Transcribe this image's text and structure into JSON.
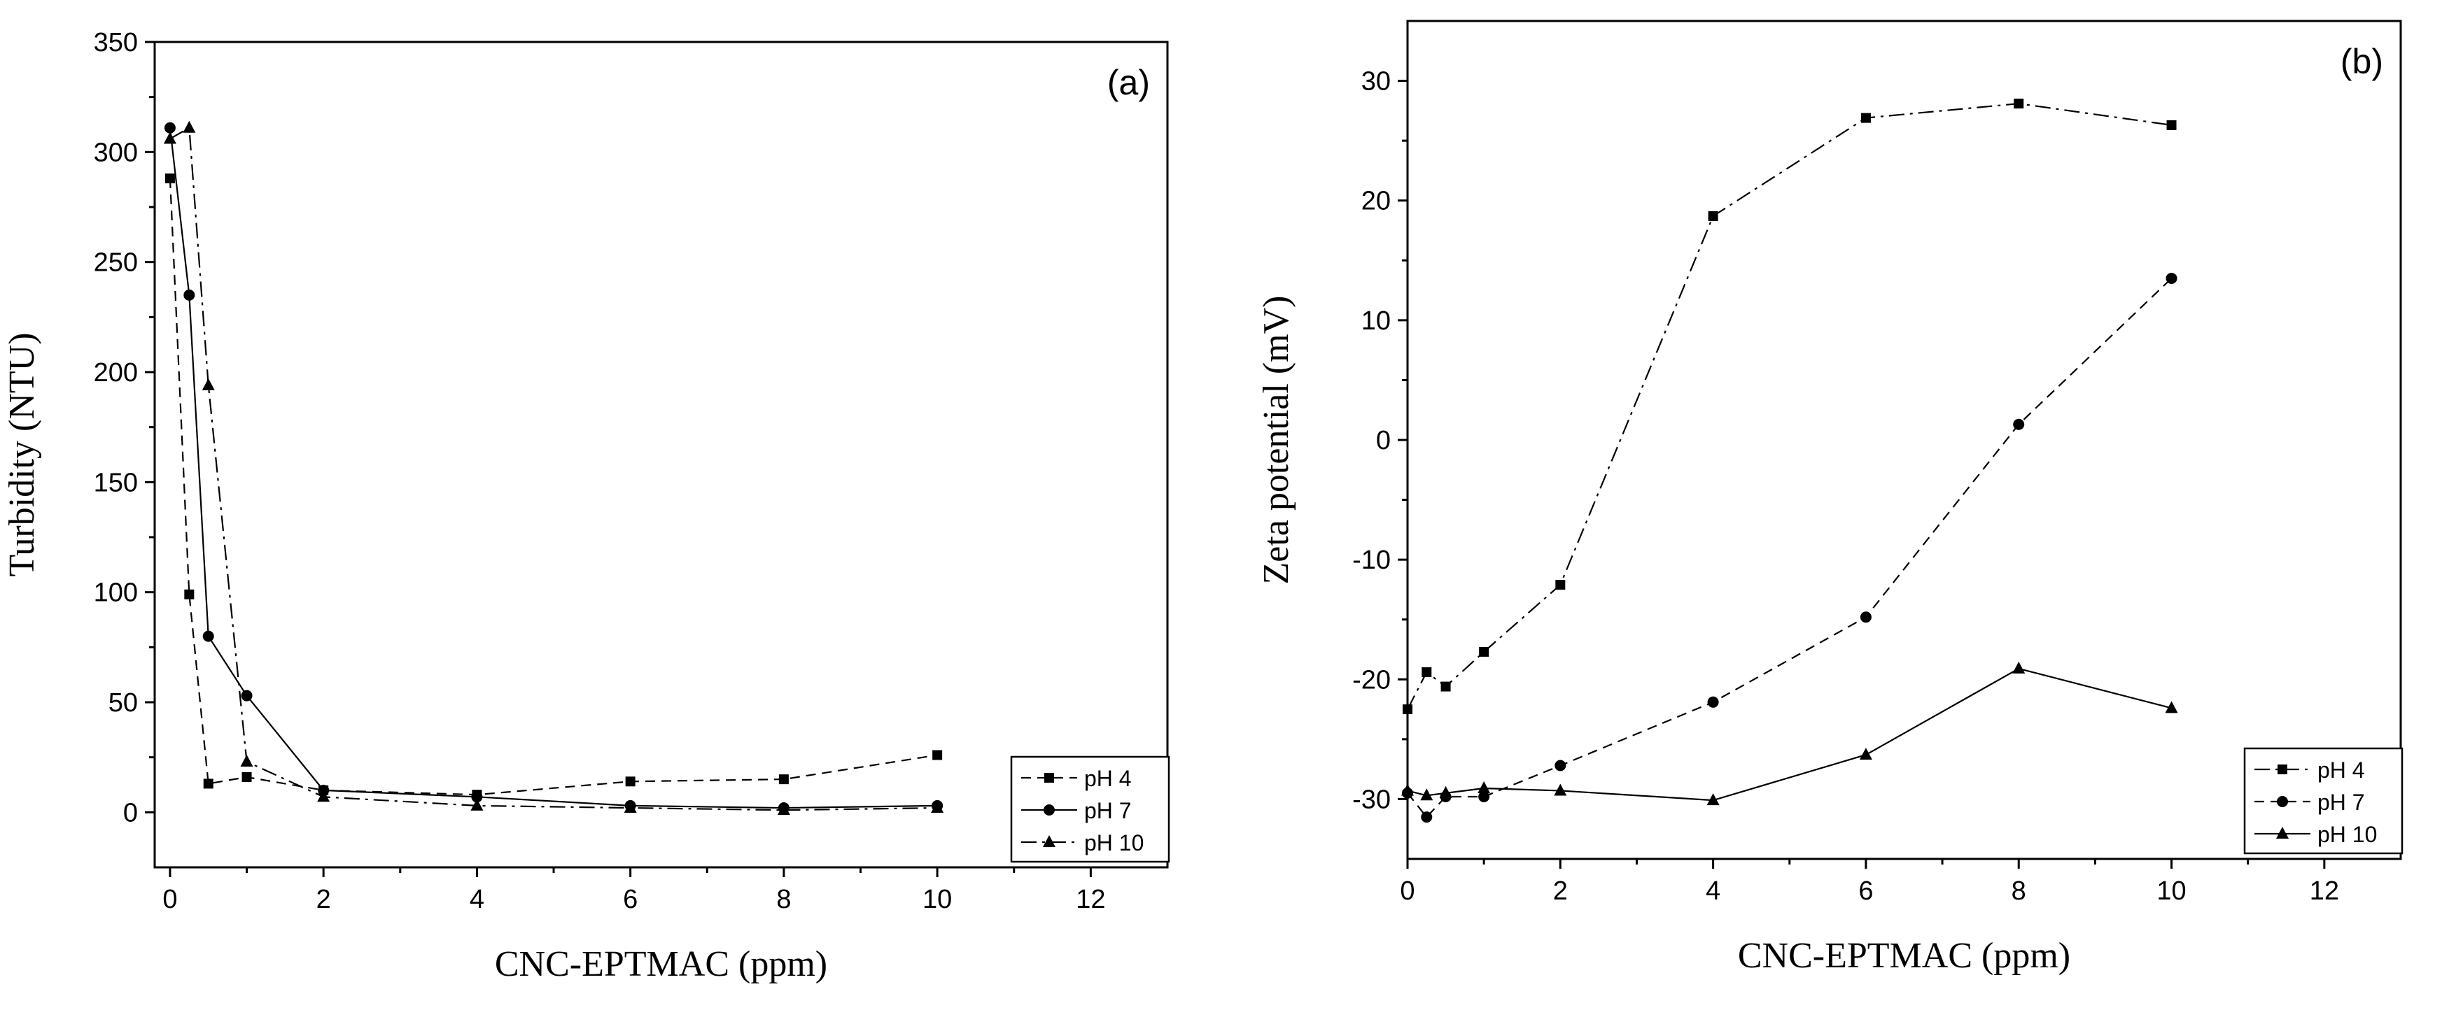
{
  "chart_data": [
    {
      "type": "line",
      "panel_label": "(a)",
      "title": "",
      "xlabel": "CNC-EPTMAC (ppm)",
      "ylabel": "Turbidity (NTU)",
      "xlim": [
        -0.2,
        13
      ],
      "ylim": [
        -25,
        350
      ],
      "xticks": [
        0,
        2,
        4,
        6,
        8,
        10,
        12
      ],
      "yticks": [
        0,
        50,
        100,
        150,
        200,
        250,
        300,
        350
      ],
      "xtick_labels": [
        "0",
        "2",
        "4",
        "6",
        "8",
        "10",
        "12"
      ],
      "ytick_labels": [
        "0",
        "50",
        "100",
        "150",
        "200",
        "250",
        "300",
        "350"
      ],
      "grid": false,
      "legend_position": "bottom-right",
      "series": [
        {
          "name": "pH 4",
          "marker": "square",
          "dash": "dashed",
          "x": [
            0,
            0.25,
            0.5,
            1,
            2,
            4,
            6,
            8,
            10
          ],
          "y": [
            288,
            99,
            13,
            16,
            10,
            8,
            14,
            15,
            26
          ]
        },
        {
          "name": "pH 7",
          "marker": "circle",
          "dash": "solid",
          "x": [
            0,
            0.25,
            0.5,
            1,
            2,
            4,
            6,
            8,
            10
          ],
          "y": [
            311,
            235,
            80,
            53,
            10,
            7,
            3,
            2,
            3
          ]
        },
        {
          "name": "pH 10",
          "marker": "triangle",
          "dash": "dashdot",
          "x": [
            0,
            0.25,
            0.5,
            1,
            2,
            4,
            6,
            8,
            10
          ],
          "y": [
            306,
            311,
            194,
            23,
            7,
            3,
            2,
            1,
            2
          ]
        }
      ]
    },
    {
      "type": "line",
      "panel_label": "(b)",
      "title": "",
      "xlabel": "CNC-EPTMAC (ppm)",
      "ylabel": "Zeta potential (mV)",
      "xlim": [
        0,
        13
      ],
      "ylim": [
        -35,
        35
      ],
      "xticks": [
        0,
        2,
        4,
        6,
        8,
        10,
        12
      ],
      "yticks": [
        -30,
        -20,
        -10,
        0,
        10,
        20,
        30
      ],
      "xtick_labels": [
        "0",
        "2",
        "4",
        "6",
        "8",
        "10",
        "12"
      ],
      "ytick_labels": [
        "-30",
        "-20",
        "-10",
        "0",
        "10",
        "20",
        "30"
      ],
      "grid": false,
      "legend_position": "bottom-right",
      "series": [
        {
          "name": "pH 4",
          "marker": "square",
          "dash": "dashdot",
          "x": [
            0,
            0.25,
            0.5,
            1,
            2,
            4,
            6,
            8,
            10
          ],
          "y": [
            -22.5,
            -19.4,
            -20.6,
            -17.7,
            -12.1,
            18.7,
            26.9,
            28.1,
            26.3
          ]
        },
        {
          "name": "pH 7",
          "marker": "circle",
          "dash": "dashed",
          "x": [
            0,
            0.25,
            0.5,
            1,
            2,
            4,
            6,
            8,
            10
          ],
          "y": [
            -29.5,
            -31.5,
            -29.8,
            -29.8,
            -27.2,
            -21.9,
            -14.8,
            1.3,
            13.5
          ]
        },
        {
          "name": "pH 10",
          "marker": "triangle",
          "dash": "solid",
          "x": [
            0,
            0.25,
            0.5,
            1,
            2,
            4,
            6,
            8,
            10
          ],
          "y": [
            -29.3,
            -29.7,
            -29.5,
            -29.1,
            -29.3,
            -30.1,
            -26.3,
            -19.1,
            -22.4
          ]
        }
      ]
    }
  ]
}
